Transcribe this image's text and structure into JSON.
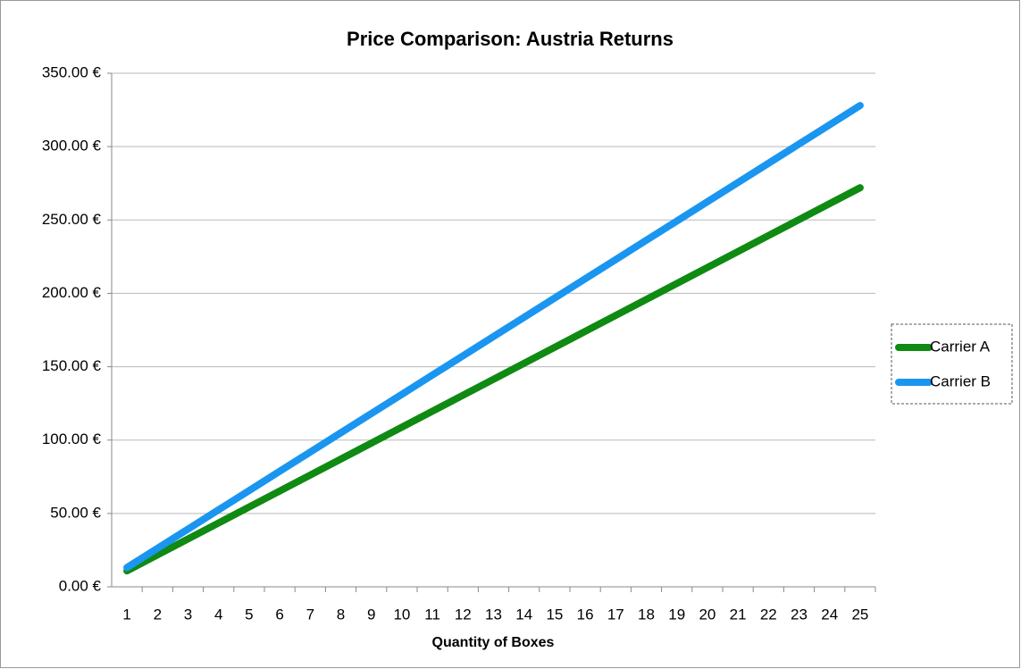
{
  "chart_data": {
    "type": "line",
    "title": "Price Comparison: Austria Returns",
    "x_label": "Quantity of Boxes",
    "categories": [
      1,
      2,
      3,
      4,
      5,
      6,
      7,
      8,
      9,
      10,
      11,
      12,
      13,
      14,
      15,
      16,
      17,
      18,
      19,
      20,
      21,
      22,
      23,
      24,
      25
    ],
    "series": [
      {
        "name": "Carrier A",
        "color": "#0f8a12",
        "values": [
          10.88,
          21.76,
          32.64,
          43.52,
          54.4,
          65.28,
          76.16,
          87.04,
          97.92,
          108.8,
          119.68,
          130.56,
          141.44,
          152.32,
          163.2,
          174.08,
          184.96,
          195.84,
          206.72,
          217.6,
          228.48,
          239.36,
          250.24,
          261.12,
          272
        ]
      },
      {
        "name": "Carrier B",
        "color": "#1a96f0",
        "values": [
          13.12,
          26.24,
          39.36,
          52.48,
          65.6,
          78.72,
          91.84,
          104.96,
          118.08,
          131.2,
          144.32,
          157.44,
          170.56,
          183.68,
          196.8,
          209.92,
          223.04,
          236.16,
          249.28,
          262.4,
          275.52,
          288.64,
          301.76,
          314.88,
          328
        ]
      }
    ],
    "ylim": [
      0,
      350
    ],
    "yticks": [
      {
        "value": 0,
        "label": "0.00 €"
      },
      {
        "value": 50,
        "label": "50.00 €"
      },
      {
        "value": 100,
        "label": "100.00 €"
      },
      {
        "value": 150,
        "label": "150.00 €"
      },
      {
        "value": 200,
        "label": "200.00 €"
      },
      {
        "value": 250,
        "label": "250.00 €"
      },
      {
        "value": 300,
        "label": "300.00 €"
      },
      {
        "value": 350,
        "label": "350.00 €"
      }
    ],
    "grid": true,
    "legend": "right"
  }
}
